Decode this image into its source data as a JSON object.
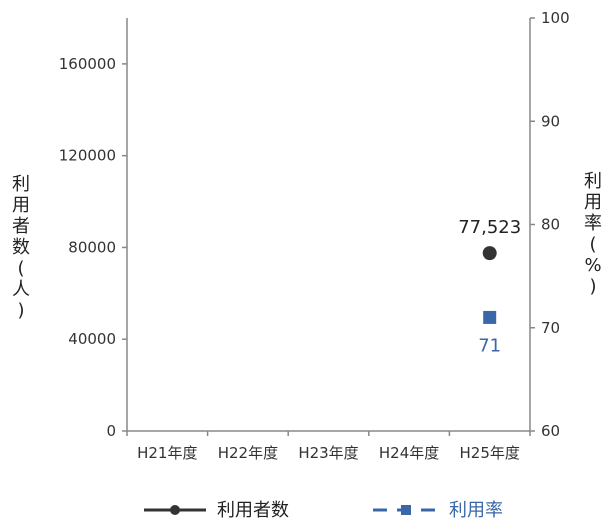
{
  "chart_data": {
    "type": "line",
    "categories": [
      "H21年度",
      "H22年度",
      "H23年度",
      "H24年度",
      "H25年度"
    ],
    "series": [
      {
        "name": "利用者数",
        "axis": "left",
        "values": [
          null,
          null,
          null,
          null,
          77523
        ],
        "data_labels": [
          null,
          null,
          null,
          null,
          "77,523"
        ],
        "color": "#333333",
        "marker": "circle",
        "line_style": "solid"
      },
      {
        "name": "利用率",
        "axis": "right",
        "values": [
          null,
          null,
          null,
          null,
          71
        ],
        "data_labels": [
          null,
          null,
          null,
          null,
          "71"
        ],
        "color": "#3a67a8",
        "marker": "square",
        "line_style": "dashed"
      }
    ],
    "left_axis": {
      "label_chars": [
        "利",
        "用",
        "者",
        "数",
        "(",
        "人",
        ")"
      ],
      "ylim": [
        0,
        180000
      ],
      "ticks": [
        0,
        40000,
        80000,
        120000,
        160000
      ],
      "tick_labels": [
        "0",
        "40000",
        "80000",
        "120000",
        "160000"
      ]
    },
    "right_axis": {
      "label_chars": [
        "利",
        "用",
        "率",
        "(",
        "%",
        ")"
      ],
      "ylim": [
        60,
        100
      ],
      "ticks": [
        60,
        70,
        80,
        90,
        100
      ],
      "tick_labels": [
        "60",
        "70",
        "80",
        "90",
        "100"
      ]
    },
    "grid": false,
    "legend_position": "bottom"
  }
}
